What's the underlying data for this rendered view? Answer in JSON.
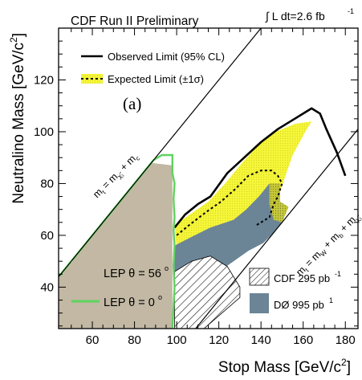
{
  "chart_data": {
    "type": "area",
    "title": "CDF Run II Preliminary",
    "luminosity": "∫ L dt=2.6 fb",
    "luminosity_sup": "-1",
    "panel_label": "(a)",
    "xlabel": "Stop Mass [GeV/c",
    "xlabel_sup": "2",
    "xlabel_close": "]",
    "ylabel": "Neutralino Mass [GeV/c",
    "ylabel_sup": "2",
    "ylabel_close": "]",
    "xlim": [
      44,
      186
    ],
    "ylim": [
      24,
      140
    ],
    "xticks": [
      60,
      80,
      100,
      120,
      140,
      160,
      180
    ],
    "yticks": [
      40,
      60,
      80,
      100,
      120
    ],
    "legend_top": {
      "observed": "Observed Limit (95% CL)",
      "expected": "Expected Limit (±1σ)"
    },
    "legend_left": {
      "lep56": "LEP θ = 56",
      "lep56_sup": "o",
      "lep0": "LEP θ = 0",
      "lep0_sup": "o"
    },
    "legend_right": {
      "cdf": "CDF 295 pb",
      "cdf_sup": "-1",
      "d0": "DØ 995 pb",
      "d0_sup": "1"
    },
    "kinematic_lines": {
      "left": {
        "label": "m",
        "intercept": 0,
        "points": [
          [
            44,
            44
          ],
          [
            140,
            140
          ]
        ]
      },
      "right": {
        "label": "m",
        "intercept": -85,
        "points": [
          [
            107,
            22
          ],
          [
            186,
            101
          ]
        ]
      }
    },
    "lep_theta56_region": [
      [
        44,
        44
      ],
      [
        44,
        24
      ],
      [
        98,
        24
      ],
      [
        98,
        87
      ],
      [
        88,
        88
      ]
    ],
    "lep_theta0_line": [
      [
        44,
        44
      ],
      [
        89,
        89
      ],
      [
        93,
        91
      ],
      [
        98,
        91
      ],
      [
        98,
        84
      ],
      [
        99,
        80
      ],
      [
        98.5,
        74
      ],
      [
        99,
        67
      ],
      [
        98.5,
        62
      ],
      [
        99,
        56
      ],
      [
        98.5,
        48
      ],
      [
        99,
        40
      ],
      [
        98,
        24
      ]
    ],
    "d0_region": [
      [
        99,
        24
      ],
      [
        99,
        56
      ],
      [
        106,
        59
      ],
      [
        116,
        63
      ],
      [
        127,
        66
      ],
      [
        133,
        70
      ],
      [
        139,
        75
      ],
      [
        144,
        80
      ],
      [
        149,
        80
      ],
      [
        149,
        73
      ],
      [
        153,
        71
      ],
      [
        150,
        65
      ],
      [
        146,
        61
      ],
      [
        141,
        57
      ],
      [
        134,
        54
      ],
      [
        127,
        50
      ],
      [
        120,
        46
      ],
      [
        114,
        40
      ],
      [
        108,
        30
      ],
      [
        106,
        24
      ]
    ],
    "cdf_region": [
      [
        99,
        24
      ],
      [
        99,
        46
      ],
      [
        107,
        50
      ],
      [
        116,
        52
      ],
      [
        124,
        48
      ],
      [
        130,
        40
      ],
      [
        130,
        36
      ],
      [
        113,
        24
      ]
    ],
    "expected_band": [
      [
        99,
        64
      ],
      [
        108,
        69
      ],
      [
        115,
        73
      ],
      [
        123,
        80
      ],
      [
        131,
        88
      ],
      [
        139,
        95
      ],
      [
        147,
        100
      ],
      [
        156,
        103
      ],
      [
        164,
        104
      ],
      [
        161,
        100
      ],
      [
        155,
        91
      ],
      [
        152,
        84
      ],
      [
        150,
        79
      ],
      [
        147,
        73
      ],
      [
        142,
        66
      ],
      [
        137,
        62
      ],
      [
        130,
        58
      ],
      [
        124,
        58
      ],
      [
        118,
        57
      ],
      [
        112,
        55
      ],
      [
        106,
        55
      ],
      [
        100,
        55
      ]
    ],
    "expected_line": [
      [
        100,
        60
      ],
      [
        106,
        64
      ],
      [
        114,
        69
      ],
      [
        121,
        73
      ],
      [
        128,
        78
      ],
      [
        134,
        83
      ],
      [
        140,
        85
      ],
      [
        145,
        85
      ],
      [
        148,
        83
      ],
      [
        150,
        80
      ],
      [
        148,
        75
      ],
      [
        146,
        72
      ],
      [
        144,
        67
      ],
      [
        138,
        64
      ]
    ],
    "observed_limit": [
      [
        99,
        63
      ],
      [
        104,
        68
      ],
      [
        110,
        72
      ],
      [
        116,
        75
      ],
      [
        124,
        84
      ],
      [
        132,
        90
      ],
      [
        140,
        96
      ],
      [
        148,
        101
      ],
      [
        156,
        105
      ],
      [
        164,
        109
      ],
      [
        168,
        107
      ],
      [
        171,
        101
      ],
      [
        176,
        92
      ],
      [
        180,
        83
      ]
    ],
    "colors": {
      "lep56": "#c2b8a3",
      "lep0": "#5fd35f",
      "d0": "#6b8596",
      "expected": "#f5f53a",
      "observed": "#000000"
    }
  }
}
